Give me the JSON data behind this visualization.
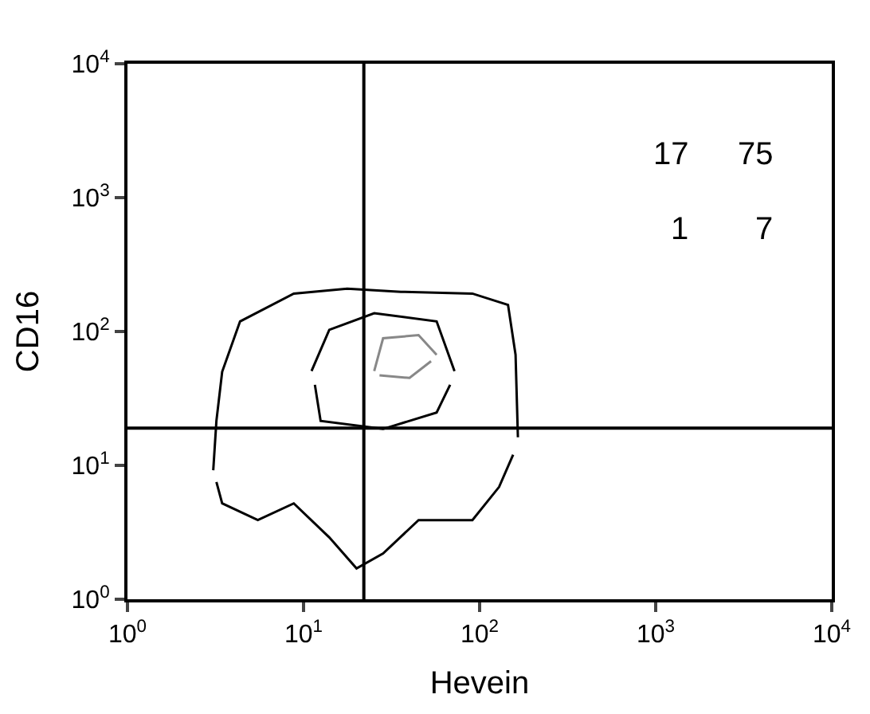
{
  "chart_data": {
    "type": "line",
    "xlabel": "Hevein",
    "ylabel": "CD16",
    "log": "xy",
    "marker": "none",
    "line_style": "solid",
    "xlim": [
      1,
      10000
    ],
    "ylim": [
      1,
      10000
    ],
    "xticks": [
      {
        "value": 1,
        "label": "10$^{0}$"
      },
      {
        "value": 10,
        "label": "10$^{1}$"
      },
      {
        "value": 100,
        "label": "10$^{2}$"
      },
      {
        "value": 1000,
        "label": "10$^{3}$"
      },
      {
        "value": 10000,
        "label": "10$^{4}$"
      }
    ],
    "yticks": [
      {
        "value": 1,
        "label": "10$^{0}$"
      },
      {
        "value": 10,
        "label": "10$^{1}$"
      },
      {
        "value": 100,
        "label": "10$^{2}$"
      },
      {
        "value": 1000,
        "label": "10$^{3}$"
      },
      {
        "value": 10000,
        "label": "10$^{4}$"
      }
    ],
    "series": [
      {
        "color": "#000000",
        "x": [
          3.07,
          3.2,
          3.45,
          4.36,
          8.8,
          17.7,
          35.7,
          91,
          145,
          160,
          165
        ],
        "values": [
          9.2,
          21.5,
          50,
          119,
          192,
          209,
          198,
          192,
          158,
          67,
          16.2
        ]
      },
      {
        "color": "#000000",
        "x": [
          3.2,
          3.45,
          5.5,
          8.8,
          14,
          20,
          28.3,
          45,
          91,
          129,
          155
        ],
        "values": [
          7.5,
          5.2,
          3.9,
          5.2,
          2.9,
          1.7,
          2.2,
          3.9,
          3.9,
          6.9,
          12
        ]
      },
      {
        "color": "#000000",
        "x": [
          11.1,
          14,
          25.2,
          57,
          72
        ],
        "values": [
          50.6,
          103,
          137,
          119,
          50.6
        ]
      },
      {
        "color": "#000000",
        "x": [
          11.6,
          12.5,
          28.3,
          57,
          68
        ],
        "values": [
          40,
          21.5,
          18.7,
          24.8,
          40
        ]
      },
      {
        "color": "#888888",
        "x": [
          25.2,
          28.3,
          45,
          57
        ],
        "values": [
          50.6,
          89,
          94,
          67
        ]
      },
      {
        "color": "#888888",
        "x": [
          27,
          40,
          53
        ],
        "values": [
          47,
          45,
          60
        ]
      }
    ],
    "ref_lines": [
      {
        "axis": "x",
        "value": 22,
        "color": "#000000"
      },
      {
        "axis": "y",
        "value": 19,
        "color": "#000000"
      }
    ],
    "annotations": [
      "17",
      "75",
      "1",
      "7"
    ]
  }
}
